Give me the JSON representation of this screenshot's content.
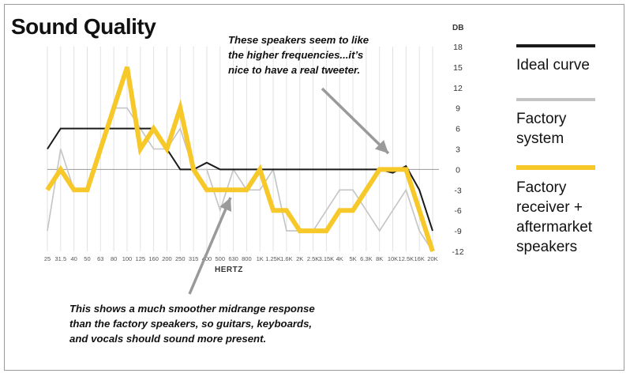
{
  "title": "Sound Quality",
  "annotations": {
    "top": [
      "These speakers seem to like",
      "the higher frequencies...it’s",
      "nice to have a real tweeter."
    ],
    "bottom": [
      "This shows a much smoother midrange response",
      "than the factory speakers, so guitars, keyboards,",
      "and vocals should sound more present."
    ]
  },
  "legend": [
    {
      "label_lines": [
        "Ideal curve"
      ],
      "color": "#1a1a1a"
    },
    {
      "label_lines": [
        "Factory",
        "system"
      ],
      "color": "#c4c4c4"
    },
    {
      "label_lines": [
        "Factory",
        "receiver +",
        "aftermarket",
        "speakers"
      ],
      "color": "#f7c82a"
    }
  ],
  "chart_data": {
    "type": "line",
    "title": "Sound Quality",
    "xlabel": "HERTZ",
    "ylabel": "DB",
    "x": [
      "25",
      "31.5",
      "40",
      "50",
      "63",
      "80",
      "100",
      "125",
      "160",
      "200",
      "250",
      "315",
      "400",
      "500",
      "630",
      "800",
      "1K",
      "1.25K",
      "1.6K",
      "2K",
      "2.5K",
      "3.15K",
      "4K",
      "5K",
      "6.3K",
      "8K",
      "10K",
      "12.5K",
      "16K",
      "20K"
    ],
    "yticks": [
      18,
      15,
      12,
      9,
      6,
      3,
      0,
      -3,
      -6,
      -9,
      -12
    ],
    "ylim": [
      -12,
      18
    ],
    "grid": true,
    "legend_position": "right",
    "series": [
      {
        "name": "Ideal curve",
        "color": "#1a1a1a",
        "values": [
          3,
          6,
          6,
          6,
          6,
          6,
          6,
          6,
          6,
          3,
          0,
          0,
          1,
          0,
          0,
          0,
          0,
          0,
          0,
          0,
          0,
          0,
          0,
          0,
          0,
          0,
          -0.5,
          0.5,
          -3,
          -9
        ]
      },
      {
        "name": "Factory system",
        "color": "#c4c4c4",
        "values": [
          -9,
          3,
          -3,
          -3,
          3,
          9,
          9,
          6,
          3,
          3,
          6,
          0,
          0,
          -6,
          0,
          -3,
          -3,
          0,
          -9,
          -9,
          -9,
          -6,
          -3,
          -3,
          -6,
          -9,
          -6,
          -3,
          -9,
          -12
        ]
      },
      {
        "name": "Factory receiver + aftermarket speakers",
        "color": "#f7c82a",
        "values": [
          -3,
          0,
          -3,
          -3,
          3,
          9,
          15,
          3,
          6,
          3,
          9,
          0,
          -3,
          -3,
          -3,
          -3,
          0,
          -6,
          -6,
          -9,
          -9,
          -9,
          -6,
          -6,
          -3,
          0,
          0,
          0,
          -6,
          -12
        ]
      }
    ]
  }
}
